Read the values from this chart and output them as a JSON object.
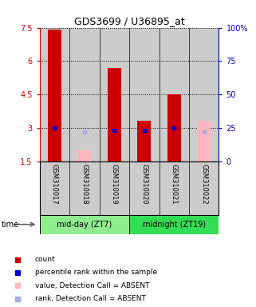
{
  "title": "GDS3699 / U36895_at",
  "samples": [
    "GSM310017",
    "GSM310018",
    "GSM310019",
    "GSM310020",
    "GSM310021",
    "GSM310022"
  ],
  "groups": [
    {
      "label": "mid-day (ZT7)",
      "indices": [
        0,
        1,
        2
      ],
      "color": "#90EE90"
    },
    {
      "label": "midnight (ZT19)",
      "indices": [
        3,
        4,
        5
      ],
      "color": "#33DD55"
    }
  ],
  "ylim_left": [
    1.5,
    7.5
  ],
  "ylim_right": [
    0,
    100
  ],
  "yticks_left": [
    1.5,
    3.0,
    4.5,
    6.0,
    7.5
  ],
  "yticks_right": [
    0,
    25,
    50,
    75,
    100
  ],
  "ytick_labels_left": [
    "1.5",
    "3",
    "4.5",
    "6",
    "7.5"
  ],
  "ytick_labels_right": [
    "0",
    "25",
    "50",
    "75",
    "100%"
  ],
  "values": [
    7.4,
    2.0,
    5.7,
    3.3,
    4.5,
    3.3
  ],
  "ranks": [
    25.0,
    22.0,
    23.0,
    23.0,
    25.0,
    22.0
  ],
  "absent": [
    false,
    true,
    false,
    false,
    false,
    true
  ],
  "bar_width": 0.45,
  "red_color": "#CC0000",
  "pink_color": "#FFB6C1",
  "blue_color": "#0000CC",
  "light_blue_color": "#AAAADD",
  "left_axis_color": "#CC0000",
  "right_axis_color": "#0000BB",
  "baseline": 1.5,
  "col_bg_color": "#CCCCCC",
  "legend_items": [
    {
      "color": "#CC0000",
      "label": "count"
    },
    {
      "color": "#0000CC",
      "label": "percentile rank within the sample"
    },
    {
      "color": "#FFB6C1",
      "label": "value, Detection Call = ABSENT"
    },
    {
      "color": "#AAAADD",
      "label": "rank, Detection Call = ABSENT"
    }
  ]
}
